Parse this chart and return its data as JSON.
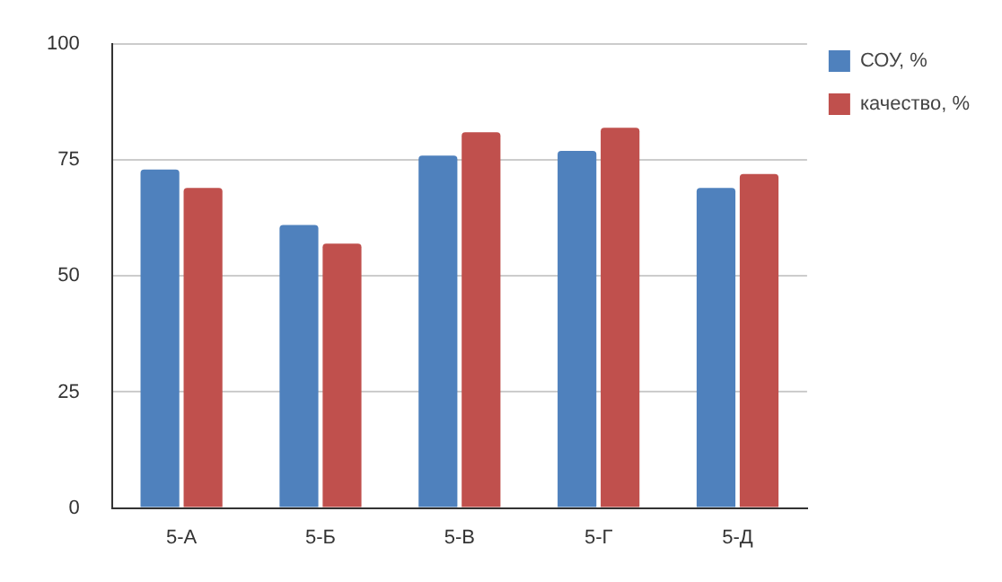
{
  "chart_data": {
    "type": "bar",
    "categories": [
      "5-А",
      "5-Б",
      "5-В",
      "5-Г",
      "5-Д"
    ],
    "series": [
      {
        "name": "СОУ, %",
        "color": "#4f81bd",
        "values": [
          73,
          61,
          76,
          77,
          69
        ]
      },
      {
        "name": "качество, %",
        "color": "#c0504d",
        "values": [
          69,
          57,
          81,
          82,
          72
        ]
      }
    ],
    "ylim": [
      0,
      100
    ],
    "yticks": [
      0,
      25,
      50,
      75,
      100
    ],
    "grid": "y",
    "legend": "top right"
  }
}
